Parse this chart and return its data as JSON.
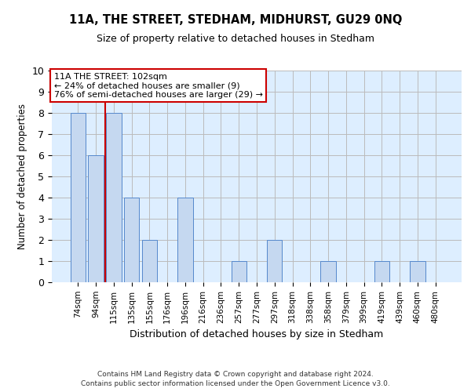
{
  "title": "11A, THE STREET, STEDHAM, MIDHURST, GU29 0NQ",
  "subtitle": "Size of property relative to detached houses in Stedham",
  "xlabel": "Distribution of detached houses by size in Stedham",
  "ylabel": "Number of detached properties",
  "categories": [
    "74sqm",
    "94sqm",
    "115sqm",
    "135sqm",
    "155sqm",
    "176sqm",
    "196sqm",
    "216sqm",
    "236sqm",
    "257sqm",
    "277sqm",
    "297sqm",
    "318sqm",
    "338sqm",
    "358sqm",
    "379sqm",
    "399sqm",
    "419sqm",
    "439sqm",
    "460sqm",
    "480sqm"
  ],
  "values": [
    8,
    6,
    8,
    4,
    2,
    0,
    4,
    0,
    0,
    1,
    0,
    2,
    0,
    0,
    1,
    0,
    0,
    1,
    0,
    1,
    0
  ],
  "bar_color": "#c5d8f0",
  "bar_edge_color": "#5588cc",
  "highlight_line_color": "#cc0000",
  "annotation_title": "11A THE STREET: 102sqm",
  "annotation_line1": "← 24% of detached houses are smaller (9)",
  "annotation_line2": "76% of semi-detached houses are larger (29) →",
  "annotation_box_color": "#ffffff",
  "annotation_box_edge_color": "#cc0000",
  "ylim": [
    0,
    10
  ],
  "yticks": [
    0,
    1,
    2,
    3,
    4,
    5,
    6,
    7,
    8,
    9,
    10
  ],
  "grid_color": "#bbbbbb",
  "background_color": "#ddeeff",
  "footer_line1": "Contains HM Land Registry data © Crown copyright and database right 2024.",
  "footer_line2": "Contains public sector information licensed under the Open Government Licence v3.0."
}
